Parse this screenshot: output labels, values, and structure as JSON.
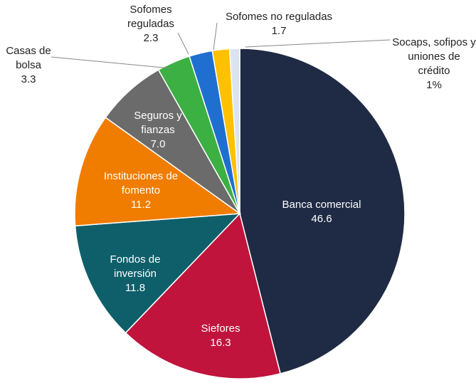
{
  "chart_data": {
    "type": "pie",
    "categories": [
      "Banca comercial",
      "Siefores",
      "Fondos de inversión",
      "Instituciones de fomento",
      "Seguros y fianzas",
      "Casas de bolsa",
      "Sofomes reguladas",
      "Sofomes no reguladas",
      "Socaps, sofipos y uniones de crédito"
    ],
    "values": [
      46.6,
      16.3,
      11.8,
      11.2,
      7.0,
      3.3,
      2.3,
      1.7,
      1
    ],
    "value_labels": [
      "46.6",
      "16.3",
      "11.8",
      "11.2",
      "7.0",
      "3.3",
      "2.3",
      "1.7",
      "1%"
    ],
    "colors": [
      "#1f2a44",
      "#c0143c",
      "#0f5f6b",
      "#f07c00",
      "#6b6b6b",
      "#3cb043",
      "#1f6fd1",
      "#ffc000",
      "#dce3f0"
    ]
  }
}
